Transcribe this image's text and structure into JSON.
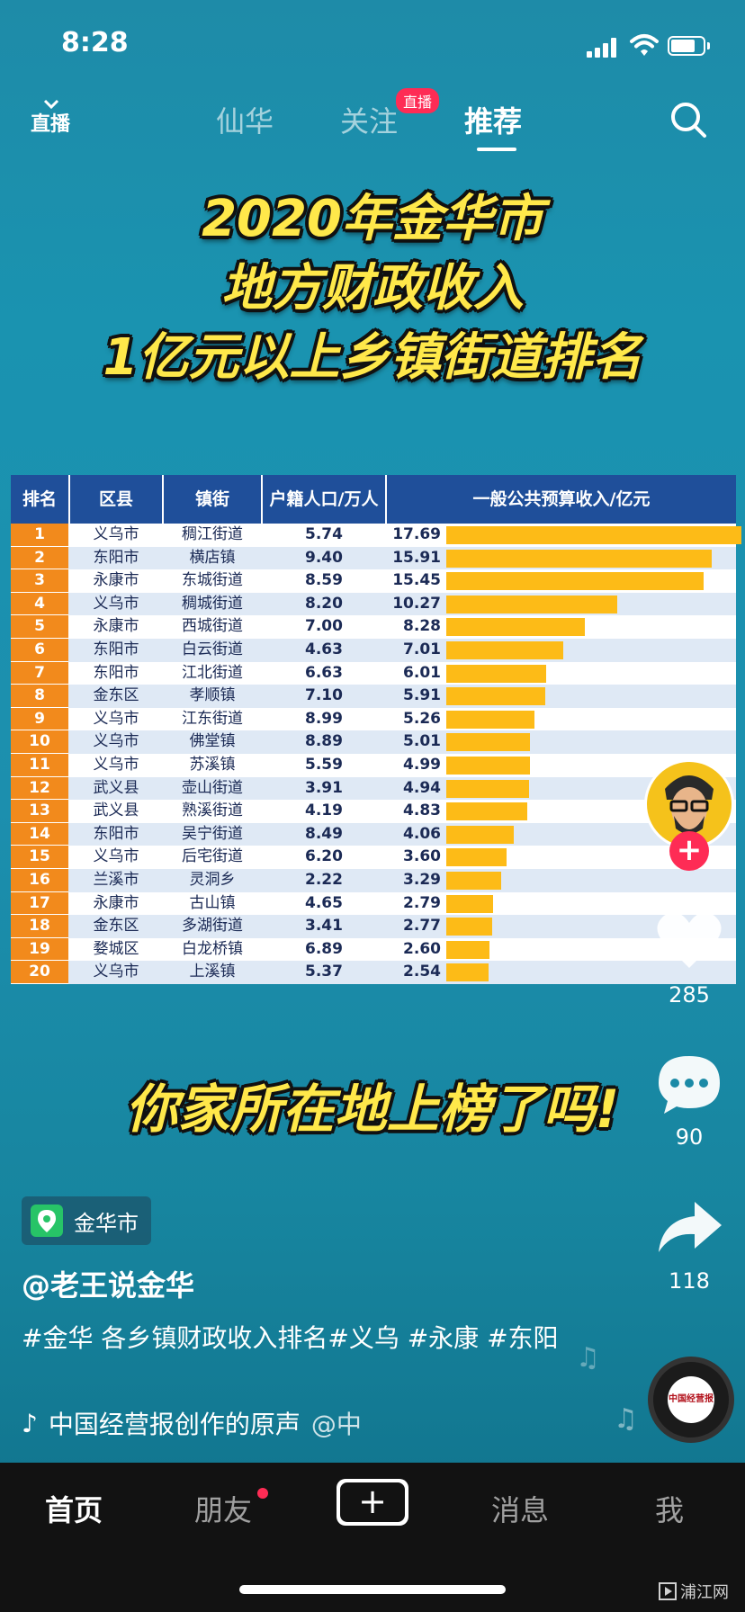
{
  "status_bar": {
    "time": "8:28"
  },
  "top_nav": {
    "live_icon_label": "直播",
    "tabs": [
      {
        "label": "仙华",
        "active": false
      },
      {
        "label": "关注",
        "active": false
      },
      {
        "label": "推荐",
        "active": true
      }
    ],
    "live_badge": "直播"
  },
  "video": {
    "headline": [
      "2020年金华市",
      "地方财政收入",
      "1亿元以上乡镇街道排名"
    ],
    "subline": "你家所在地上榜了吗!",
    "table": {
      "headers": [
        "排名",
        "区县",
        "镇街",
        "户籍人口/万人",
        "一般公共预算收入/亿元"
      ],
      "max_revenue": 17.69,
      "rows": [
        {
          "rank": "1",
          "district": "义乌市",
          "town": "稠江街道",
          "population": "5.74",
          "revenue": "17.69"
        },
        {
          "rank": "2",
          "district": "东阳市",
          "town": "横店镇",
          "population": "9.40",
          "revenue": "15.91"
        },
        {
          "rank": "3",
          "district": "永康市",
          "town": "东城街道",
          "population": "8.59",
          "revenue": "15.45"
        },
        {
          "rank": "4",
          "district": "义乌市",
          "town": "稠城街道",
          "population": "8.20",
          "revenue": "10.27"
        },
        {
          "rank": "5",
          "district": "永康市",
          "town": "西城街道",
          "population": "7.00",
          "revenue": "8.28"
        },
        {
          "rank": "6",
          "district": "东阳市",
          "town": "白云街道",
          "population": "4.63",
          "revenue": "7.01"
        },
        {
          "rank": "7",
          "district": "东阳市",
          "town": "江北街道",
          "population": "6.63",
          "revenue": "6.01"
        },
        {
          "rank": "8",
          "district": "金东区",
          "town": "孝顺镇",
          "population": "7.10",
          "revenue": "5.91"
        },
        {
          "rank": "9",
          "district": "义乌市",
          "town": "江东街道",
          "population": "8.99",
          "revenue": "5.26"
        },
        {
          "rank": "10",
          "district": "义乌市",
          "town": "佛堂镇",
          "population": "8.89",
          "revenue": "5.01"
        },
        {
          "rank": "11",
          "district": "义乌市",
          "town": "苏溪镇",
          "population": "5.59",
          "revenue": "4.99"
        },
        {
          "rank": "12",
          "district": "武义县",
          "town": "壶山街道",
          "population": "3.91",
          "revenue": "4.94"
        },
        {
          "rank": "13",
          "district": "武义县",
          "town": "熟溪街道",
          "population": "4.19",
          "revenue": "4.83"
        },
        {
          "rank": "14",
          "district": "东阳市",
          "town": "吴宁街道",
          "population": "8.49",
          "revenue": "4.06"
        },
        {
          "rank": "15",
          "district": "义乌市",
          "town": "后宅街道",
          "population": "6.20",
          "revenue": "3.60"
        },
        {
          "rank": "16",
          "district": "兰溪市",
          "town": "灵洞乡",
          "population": "2.22",
          "revenue": "3.29"
        },
        {
          "rank": "17",
          "district": "永康市",
          "town": "古山镇",
          "population": "4.65",
          "revenue": "2.79"
        },
        {
          "rank": "18",
          "district": "金东区",
          "town": "多湖街道",
          "population": "3.41",
          "revenue": "2.77"
        },
        {
          "rank": "19",
          "district": "婺城区",
          "town": "白龙桥镇",
          "population": "6.89",
          "revenue": "2.60"
        },
        {
          "rank": "20",
          "district": "义乌市",
          "town": "上溪镇",
          "population": "5.37",
          "revenue": "2.54"
        }
      ]
    }
  },
  "right_rail": {
    "follow_label": "+",
    "likes": "285",
    "comments": "90",
    "shares": "118"
  },
  "post": {
    "location": "金华市",
    "author": "@老王说金华",
    "caption": "#金华 各乡镇财政收入排名#义乌 #永康 #东阳",
    "music": "中国经营报创作的原声",
    "music_tail": "@中",
    "disc_label": "中国经营报"
  },
  "bottom_nav": {
    "tabs": [
      "首页",
      "朋友",
      "消息",
      "我"
    ],
    "create_label": "+"
  },
  "watermark": "浦江网",
  "colors": {
    "accent": "#fe2c55",
    "bar": "#fdbb17",
    "rank_cell": "#f28a1c",
    "header": "#1f4f9a"
  }
}
